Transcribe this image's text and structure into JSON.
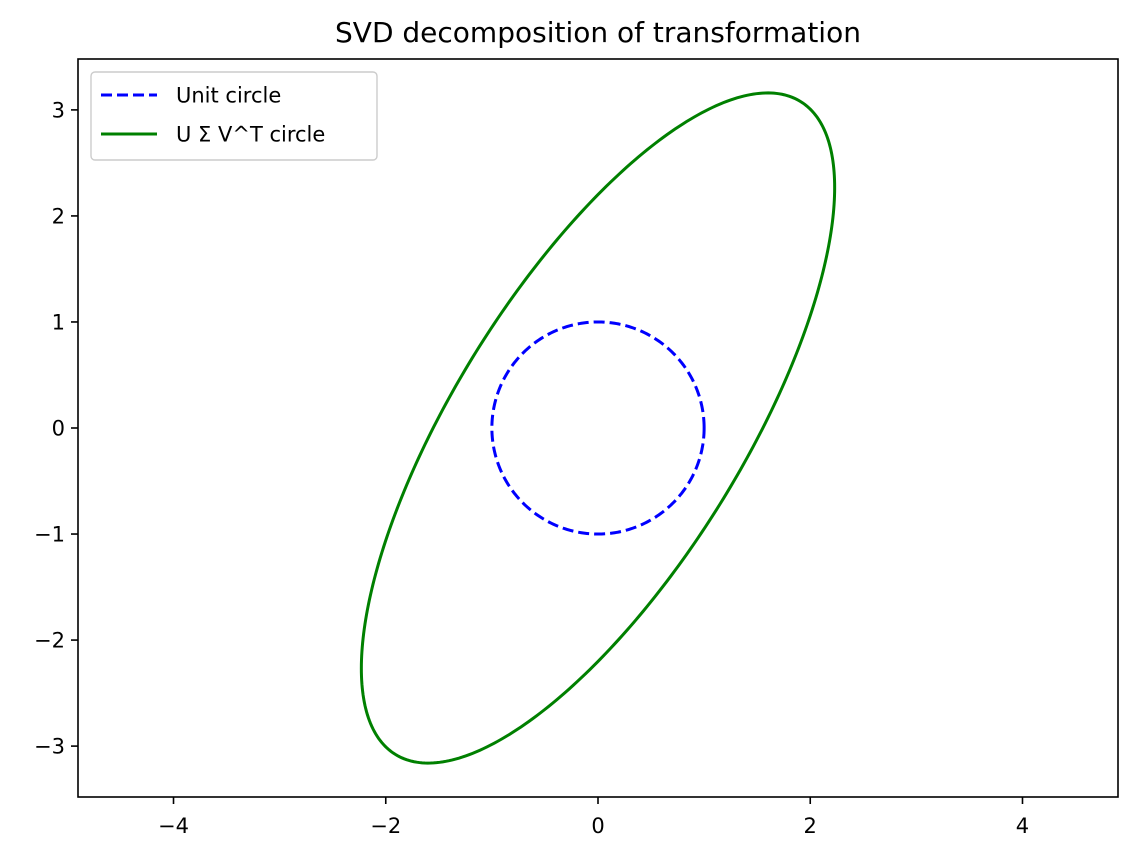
{
  "chart_data": {
    "type": "line",
    "title": "SVD decomposition of transformation",
    "xlabel": "",
    "ylabel": "",
    "xlim": [
      -4.9,
      4.9
    ],
    "ylim": [
      -3.48,
      3.48
    ],
    "x_ticks": [
      -4,
      -2,
      0,
      2,
      4
    ],
    "x_tick_labels": [
      "−4",
      "−2",
      "0",
      "2",
      "4"
    ],
    "y_ticks": [
      -3,
      -2,
      -1,
      0,
      1,
      2,
      3
    ],
    "y_tick_labels": [
      "−3",
      "−2",
      "−1",
      "0",
      "1",
      "2",
      "3"
    ],
    "grid": false,
    "legend_position": "upper-left",
    "series": [
      {
        "name": "Unit circle",
        "color": "#0000ff",
        "style": "dashed",
        "shape": "ellipse",
        "center": [
          0,
          0
        ],
        "x_extent": [
          -1,
          1
        ],
        "y_extent": [
          -1,
          1
        ]
      },
      {
        "name": "U Σ V^T circle",
        "color": "#008000",
        "style": "solid",
        "shape": "ellipse",
        "center": [
          0,
          0
        ],
        "points": [
          [
            2.23,
            2.25
          ],
          [
            1.6,
            3.16
          ],
          [
            -1.6,
            -3.16
          ],
          [
            -2.23,
            -2.25
          ]
        ],
        "x_extent": [
          -2.23,
          2.23
        ],
        "y_extent": [
          -3.16,
          3.16
        ]
      }
    ]
  }
}
